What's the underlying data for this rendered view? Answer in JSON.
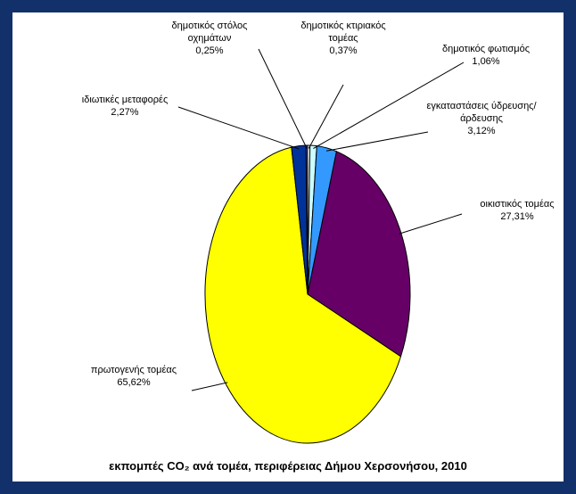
{
  "chart_data": {
    "type": "pie",
    "title": "εκπομπές CO₂ ανά τομέα, περιφέρειας Δήμου Χερσονήσου, 2010",
    "categories": [
      "δημοτικός κτιριακός τομέας",
      "δημοτικός φωτισμός",
      "εγκαταστάσεις ύδρευσης/άρδευσης",
      "οικιστικός τομέας",
      "πρωτογενής τομέας",
      "ιδιωτικές μεταφορές",
      "δημοτικός στόλος οχημάτων"
    ],
    "values": [
      0.37,
      1.06,
      3.12,
      27.31,
      65.62,
      2.27,
      0.25
    ],
    "value_labels": [
      "0,37%",
      "1,06%",
      "3,12%",
      "27,31%",
      "65,62%",
      "2,27%",
      "0,25%"
    ],
    "colors": [
      "#ffffff",
      "#ccffff",
      "#3399ff",
      "#660066",
      "#ffff00",
      "#003399",
      "#3366ff"
    ]
  }
}
